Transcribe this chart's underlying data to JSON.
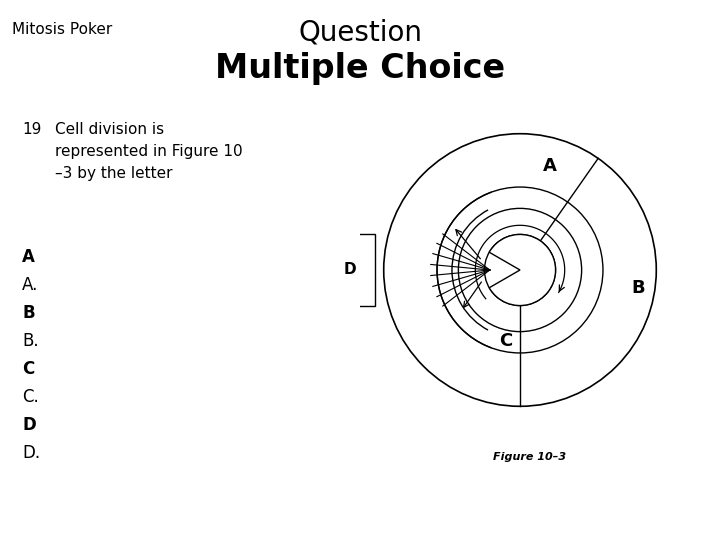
{
  "title1": "Question",
  "title2": "Multiple Choice",
  "corner_text": "Mitosis Poker",
  "question_num": "19",
  "question_text": "Cell division is\nrepresented in Figure 10\n–3 by the letter",
  "options_bold": [
    "A",
    "B",
    "C",
    "D"
  ],
  "options_plain": [
    "A.",
    "B.",
    "C.",
    "D."
  ],
  "fig_caption": "Figure 10–3",
  "bg_color": "#ffffff",
  "text_color": "#000000",
  "lc": "#000000",
  "lw": 1.0
}
